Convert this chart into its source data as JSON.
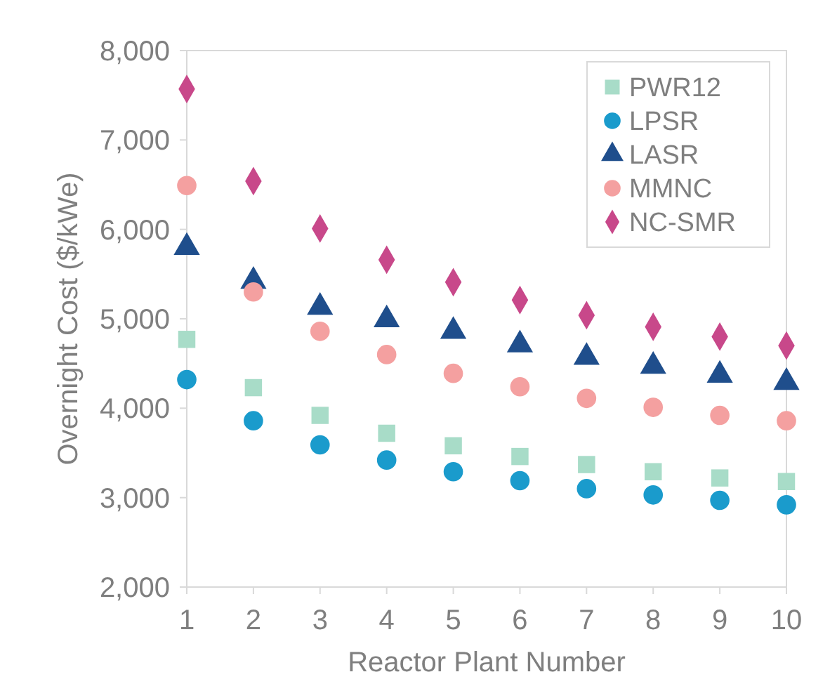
{
  "chart_data": {
    "type": "scatter",
    "xlabel": "Reactor Plant Number",
    "ylabel": "Overnight Cost ($/kWe)",
    "x": [
      1,
      2,
      3,
      4,
      5,
      6,
      7,
      8,
      9,
      10
    ],
    "xlim": [
      1,
      10
    ],
    "xticks": [
      1,
      2,
      3,
      4,
      5,
      6,
      7,
      8,
      9,
      10
    ],
    "ylim": [
      2000,
      8000
    ],
    "yticks": [
      {
        "value": 2000,
        "label": "2,000"
      },
      {
        "value": 3000,
        "label": "3,000"
      },
      {
        "value": 4000,
        "label": "4,000"
      },
      {
        "value": 5000,
        "label": "5,000"
      },
      {
        "value": 6000,
        "label": "6,000"
      },
      {
        "value": 7000,
        "label": "7,000"
      },
      {
        "value": 8000,
        "label": "8,000"
      }
    ],
    "grid": false,
    "legend": "top right",
    "series": [
      {
        "name": "PWR12",
        "color": "#a8dcc8",
        "marker": "square",
        "values": [
          4770,
          4230,
          3920,
          3720,
          3580,
          3460,
          3370,
          3290,
          3220,
          3180
        ]
      },
      {
        "name": "LPSR",
        "color": "#1a9bcc",
        "marker": "circle",
        "values": [
          4320,
          3860,
          3590,
          3420,
          3290,
          3190,
          3100,
          3030,
          2970,
          2920
        ]
      },
      {
        "name": "LASR",
        "color": "#1f4e8c",
        "marker": "triangle",
        "values": [
          5800,
          5420,
          5130,
          4990,
          4860,
          4710,
          4570,
          4470,
          4370,
          4290
        ]
      },
      {
        "name": "MMNC",
        "color": "#f4a0a0",
        "marker": "circle",
        "values": [
          6490,
          5300,
          4860,
          4600,
          4390,
          4240,
          4110,
          4010,
          3920,
          3860
        ]
      },
      {
        "name": "NC-SMR",
        "color": "#c8488a",
        "marker": "diamond",
        "values": [
          7570,
          6540,
          6010,
          5660,
          5410,
          5210,
          5040,
          4910,
          4800,
          4700
        ]
      }
    ]
  }
}
